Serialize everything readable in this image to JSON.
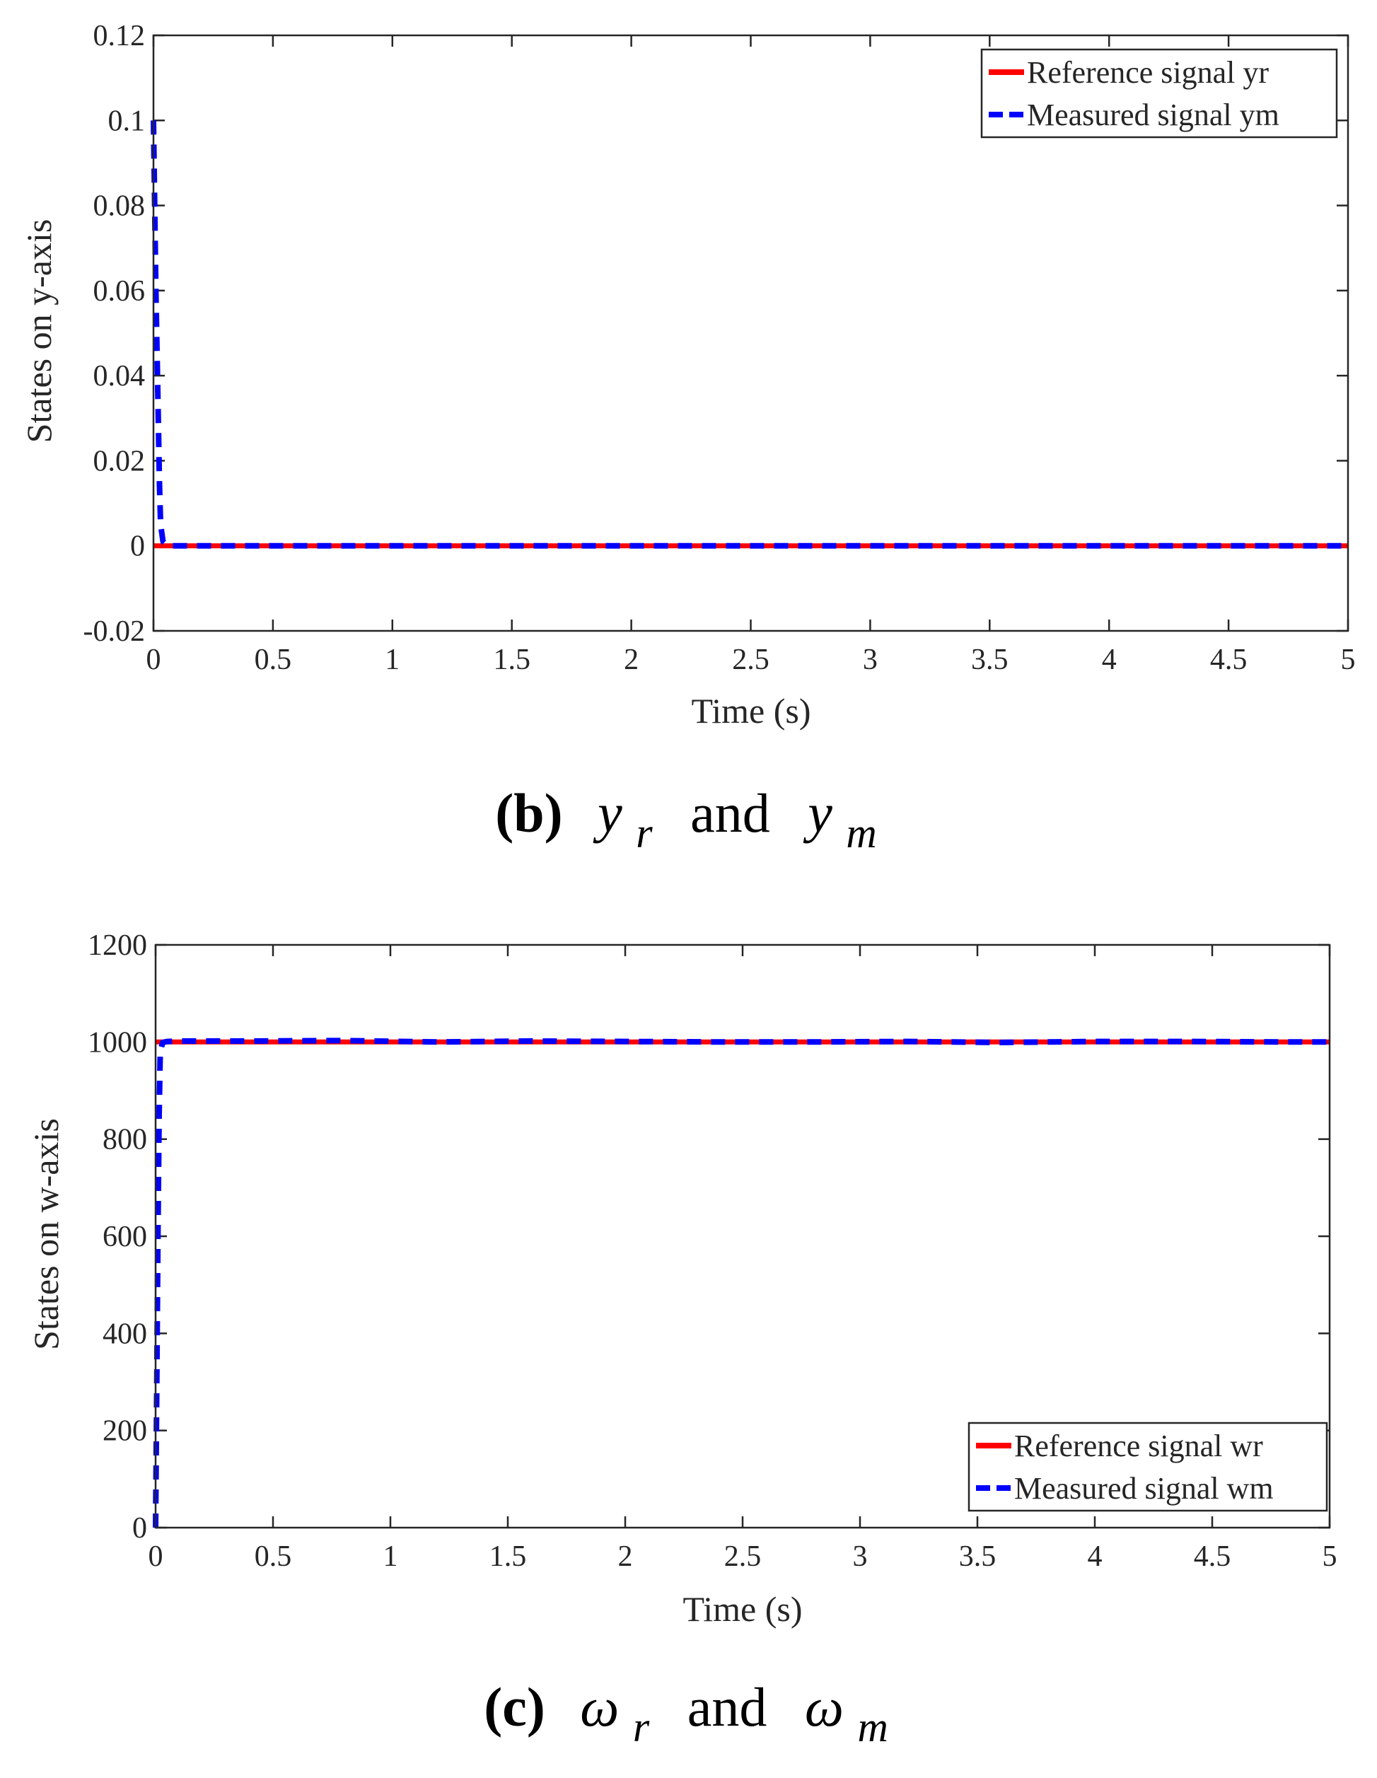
{
  "colors": {
    "reference": "#ff0000",
    "measured": "#0000ff",
    "axis": "#262626",
    "background": "#ffffff"
  },
  "chart_data": [
    {
      "type": "line",
      "xlabel": "Time (s)",
      "ylabel": "States on y-axis",
      "xlim": [
        0,
        5
      ],
      "ylim": [
        -0.02,
        0.12
      ],
      "xticks": [
        0,
        0.5,
        1,
        1.5,
        2,
        2.5,
        3,
        3.5,
        4,
        4.5,
        5
      ],
      "yticks": [
        -0.02,
        0,
        0.02,
        0.04,
        0.06,
        0.08,
        0.1,
        0.12
      ],
      "ytick_labels": [
        "-0.02",
        "0",
        "0.02",
        "0.04",
        "0.06",
        "0.08",
        "0.1",
        "0.12"
      ],
      "xtick_labels": [
        "0",
        "0.5",
        "1",
        "1.5",
        "2",
        "2.5",
        "3",
        "3.5",
        "4",
        "4.5",
        "5"
      ],
      "grid": false,
      "legend_position": "top-right",
      "series": [
        {
          "name": "Reference signal yr",
          "style": "solid",
          "x": [
            0,
            5
          ],
          "y": [
            0,
            0
          ]
        },
        {
          "name": "Measured signal ym",
          "style": "dashed",
          "x": [
            0,
            0.005,
            0.01,
            0.015,
            0.02,
            0.025,
            0.03,
            0.04,
            0.06,
            0.1,
            5
          ],
          "y": [
            0.1,
            0.08,
            0.06,
            0.045,
            0.03,
            0.015,
            0.005,
            0.001,
            0,
            0,
            0
          ]
        }
      ],
      "caption": {
        "label": "(b)",
        "var1": "y",
        "sub1": "r",
        "conj": "and",
        "var2": "y",
        "sub2": "m"
      }
    },
    {
      "type": "line",
      "xlabel": "Time (s)",
      "ylabel": "States on w-axis",
      "xlim": [
        0,
        5
      ],
      "ylim": [
        0,
        1200
      ],
      "xticks": [
        0,
        0.5,
        1,
        1.5,
        2,
        2.5,
        3,
        3.5,
        4,
        4.5,
        5
      ],
      "yticks": [
        0,
        200,
        400,
        600,
        800,
        1000,
        1200
      ],
      "ytick_labels": [
        "0",
        "200",
        "400",
        "600",
        "800",
        "1000",
        "1200"
      ],
      "xtick_labels": [
        "0",
        "0.5",
        "1",
        "1.5",
        "2",
        "2.5",
        "3",
        "3.5",
        "4",
        "4.5",
        "5"
      ],
      "grid": false,
      "legend_position": "bottom-right",
      "series": [
        {
          "name": "Reference signal wr",
          "style": "solid",
          "x": [
            0,
            5
          ],
          "y": [
            1000,
            1000
          ]
        },
        {
          "name": "Measured signal wm",
          "style": "dashed",
          "x": [
            0,
            0.005,
            0.01,
            0.015,
            0.02,
            0.03,
            0.05,
            0.1,
            0.4,
            0.8,
            1.2,
            1.6,
            2,
            2.4,
            2.8,
            3.2,
            3.6,
            4,
            4.4,
            4.8,
            5
          ],
          "y": [
            0,
            300,
            600,
            850,
            980,
            999,
            1001,
            1002,
            1002,
            1003,
            1000,
            1002,
            1001,
            1000,
            1000,
            1001,
            999,
            1001,
            1001,
            1000,
            1000
          ]
        }
      ],
      "caption": {
        "label": "(c)",
        "var1": "ω",
        "sub1": "r",
        "conj": "and",
        "var2": "ω",
        "sub2": "m"
      }
    }
  ]
}
